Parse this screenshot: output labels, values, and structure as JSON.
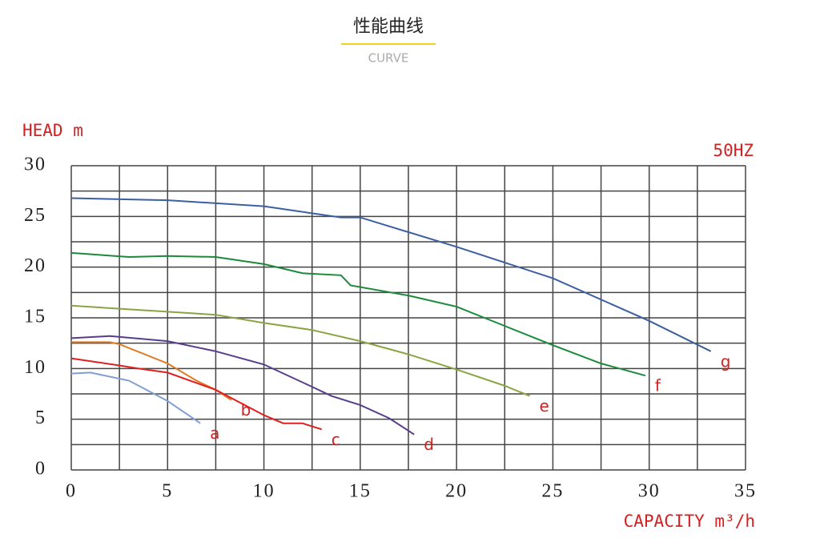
{
  "header": {
    "title": "性能曲线",
    "subtitle": "CURVE"
  },
  "chart_data": {
    "type": "line",
    "y_label": "HEAD m",
    "x_label": "CAPACITY m³/h",
    "annotation": "50HZ",
    "xlim": [
      0,
      35
    ],
    "ylim": [
      0,
      30
    ],
    "xticks": [
      0,
      5,
      10,
      15,
      20,
      25,
      30,
      35
    ],
    "yticks": [
      0,
      5,
      10,
      15,
      20,
      25,
      30
    ],
    "x_minor_grid": [
      2.5,
      7.5,
      12.5,
      17.5,
      22.5,
      27.5,
      32.5
    ],
    "y_minor_grid": [
      2.5,
      7.5,
      12.5,
      17.5,
      22.5,
      27.5
    ],
    "grid": true,
    "series_label_color": "#d42020",
    "series": [
      {
        "name": "a",
        "color": "#7f9fd2",
        "x": [
          0,
          1,
          2.5,
          3,
          5,
          6.7
        ],
        "values": [
          9.5,
          9.6,
          9.0,
          8.8,
          6.8,
          4.6
        ]
      },
      {
        "name": "b",
        "color": "#e07a22",
        "x": [
          0,
          2,
          2.5,
          5,
          6.5,
          7.5,
          8.3
        ],
        "values": [
          12.6,
          12.6,
          12.4,
          10.5,
          8.8,
          7.9,
          6.9
        ]
      },
      {
        "name": "c",
        "color": "#e02020",
        "x": [
          0,
          2.5,
          3.5,
          5,
          7.5,
          10,
          11,
          12,
          13
        ],
        "values": [
          11.0,
          10.3,
          10.0,
          9.6,
          7.9,
          5.4,
          4.6,
          4.6,
          4.0
        ]
      },
      {
        "name": "d",
        "color": "#5a3d8a",
        "x": [
          0,
          2,
          5,
          7.5,
          10,
          12.5,
          13.5,
          15,
          16.5,
          17.8
        ],
        "values": [
          13.0,
          13.2,
          12.7,
          11.7,
          10.4,
          8.2,
          7.3,
          6.4,
          5.1,
          3.5
        ]
      },
      {
        "name": "e",
        "color": "#8ba343",
        "x": [
          0,
          5,
          7.5,
          10,
          12.5,
          15,
          17.5,
          20,
          22.5,
          23.8
        ],
        "values": [
          16.2,
          15.6,
          15.3,
          14.5,
          13.8,
          12.7,
          11.4,
          9.9,
          8.3,
          7.3
        ]
      },
      {
        "name": "f",
        "color": "#1b8a3b",
        "x": [
          0,
          3,
          5,
          7.5,
          10,
          12,
          14,
          14.5,
          17.5,
          20,
          22.5,
          25,
          27.5,
          29.8
        ],
        "values": [
          21.4,
          21.0,
          21.1,
          21.0,
          20.3,
          19.4,
          19.2,
          18.2,
          17.2,
          16.1,
          14.2,
          12.3,
          10.5,
          9.3
        ]
      },
      {
        "name": "g",
        "color": "#3b5fa0",
        "x": [
          0,
          5,
          10,
          14,
          14.5,
          15,
          20,
          25,
          30,
          33.2
        ],
        "values": [
          26.8,
          26.6,
          26.0,
          24.9,
          24.9,
          24.9,
          22.0,
          18.9,
          14.7,
          11.7
        ]
      }
    ]
  }
}
